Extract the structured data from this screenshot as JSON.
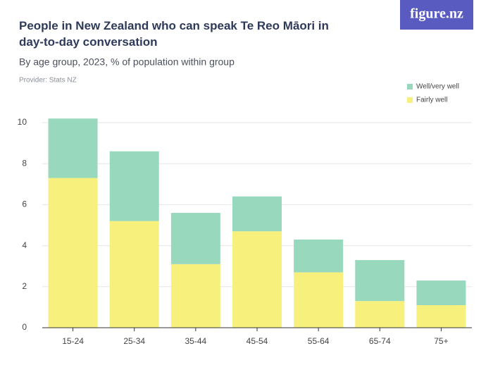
{
  "brand": "figure.nz",
  "chart_data": {
    "type": "stacked-bar",
    "title": "People in New Zealand who can speak Te Reo Māori in day-to-day conversation",
    "subtitle": "By age group, 2023, % of population within group",
    "provider": "Provider: Stats NZ",
    "categories": [
      "15-24",
      "25-34",
      "35-44",
      "45-54",
      "55-64",
      "65-74",
      "75+"
    ],
    "series": [
      {
        "name": "Fairly well",
        "color": "#f8f07c",
        "values": [
          7.3,
          5.2,
          3.1,
          4.7,
          2.7,
          1.3,
          1.1
        ]
      },
      {
        "name": "Well/very well",
        "color": "#98d8bc",
        "values": [
          2.9,
          3.4,
          2.5,
          1.7,
          1.6,
          2.0,
          1.2
        ]
      }
    ],
    "ylim": [
      0,
      10.6
    ],
    "yticks": [
      0,
      2,
      4,
      6,
      8,
      10
    ],
    "grid": true
  }
}
